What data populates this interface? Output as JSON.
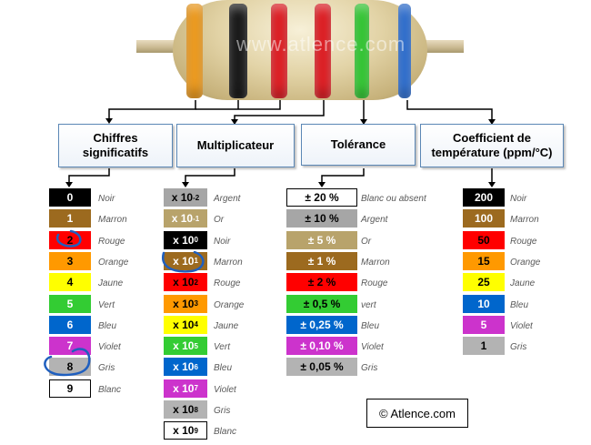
{
  "watermark": "www.atlence.com",
  "resistor_bands": [
    "#f29d1e",
    "#1a1a1a",
    "#e31e24",
    "#e31e24",
    "#33cc33",
    "#2b6fd6"
  ],
  "categories": {
    "chiffres": [
      "Chiffres",
      "significatifs"
    ],
    "multiplicateur": [
      "Multiplicateur"
    ],
    "tolerance": [
      "Tolérance"
    ],
    "coefficient": [
      "Coefficient de",
      "température (ppm/°C)"
    ]
  },
  "chiffres": [
    {
      "value": "0",
      "label": "Noir",
      "color": "#000000",
      "text": "#ffffff"
    },
    {
      "value": "1",
      "label": "Marron",
      "color": "#9c6a1f",
      "text": "#ffffff"
    },
    {
      "value": "2",
      "label": "Rouge",
      "color": "#ff0000",
      "text": "#000000"
    },
    {
      "value": "3",
      "label": "Orange",
      "color": "#ff9900",
      "text": "#000000"
    },
    {
      "value": "4",
      "label": "Jaune",
      "color": "#ffff00",
      "text": "#000000"
    },
    {
      "value": "5",
      "label": "Vert",
      "color": "#33cc33",
      "text": "#ffffff"
    },
    {
      "value": "6",
      "label": "Bleu",
      "color": "#0066cc",
      "text": "#ffffff"
    },
    {
      "value": "7",
      "label": "Violet",
      "color": "#cc33cc",
      "text": "#ffffff"
    },
    {
      "value": "8",
      "label": "Gris",
      "color": "#b3b3b3",
      "text": "#000000"
    },
    {
      "value": "9",
      "label": "Blanc",
      "color": "#ffffff",
      "text": "#000000"
    }
  ],
  "multiplicateur": [
    {
      "base": "x 10",
      "exp": "-2",
      "label": "Argent",
      "color": "#a6a6a6",
      "text": "#000000"
    },
    {
      "base": "x 10",
      "exp": "-1",
      "label": "Or",
      "color": "#b8a36b",
      "text": "#ffffff"
    },
    {
      "base": "x 10",
      "exp": "0",
      "label": "Noir",
      "color": "#000000",
      "text": "#ffffff"
    },
    {
      "base": "x 10",
      "exp": "1",
      "label": "Marron",
      "color": "#9c6a1f",
      "text": "#ffffff"
    },
    {
      "base": "x 10",
      "exp": "2",
      "label": "Rouge",
      "color": "#ff0000",
      "text": "#000000"
    },
    {
      "base": "x 10",
      "exp": "3",
      "label": "Orange",
      "color": "#ff9900",
      "text": "#000000"
    },
    {
      "base": "x 10",
      "exp": "4",
      "label": "Jaune",
      "color": "#ffff00",
      "text": "#000000"
    },
    {
      "base": "x 10",
      "exp": "5",
      "label": "Vert",
      "color": "#33cc33",
      "text": "#ffffff"
    },
    {
      "base": "x 10",
      "exp": "6",
      "label": "Bleu",
      "color": "#0066cc",
      "text": "#ffffff"
    },
    {
      "base": "x 10",
      "exp": "7",
      "label": "Violet",
      "color": "#cc33cc",
      "text": "#ffffff"
    },
    {
      "base": "x 10",
      "exp": "8",
      "label": "Gris",
      "color": "#b3b3b3",
      "text": "#000000"
    },
    {
      "base": "x 10",
      "exp": "9",
      "label": "Blanc",
      "color": "#ffffff",
      "text": "#000000"
    }
  ],
  "tolerance": [
    {
      "value": "± 20 %",
      "label": "Blanc ou absent",
      "color": "#ffffff",
      "text": "#000000"
    },
    {
      "value": "± 10 %",
      "label": "Argent",
      "color": "#a6a6a6",
      "text": "#000000"
    },
    {
      "value": "± 5 %",
      "label": "Or",
      "color": "#b8a36b",
      "text": "#ffffff"
    },
    {
      "value": "± 1 %",
      "label": "Marron",
      "color": "#9c6a1f",
      "text": "#ffffff"
    },
    {
      "value": "± 2 %",
      "label": "Rouge",
      "color": "#ff0000",
      "text": "#000000"
    },
    {
      "value": "± 0,5 %",
      "label": "vert",
      "color": "#33cc33",
      "text": "#000000"
    },
    {
      "value": "± 0,25 %",
      "label": "Bleu",
      "color": "#0066cc",
      "text": "#ffffff"
    },
    {
      "value": "± 0,10 %",
      "label": "Violet",
      "color": "#cc33cc",
      "text": "#ffffff"
    },
    {
      "value": "± 0,05 %",
      "label": "Gris",
      "color": "#b3b3b3",
      "text": "#000000"
    }
  ],
  "coefficient": [
    {
      "value": "200",
      "label": "Noir",
      "color": "#000000",
      "text": "#ffffff"
    },
    {
      "value": "100",
      "label": "Marron",
      "color": "#9c6a1f",
      "text": "#ffffff"
    },
    {
      "value": "50",
      "label": "Rouge",
      "color": "#ff0000",
      "text": "#000000"
    },
    {
      "value": "15",
      "label": "Orange",
      "color": "#ff9900",
      "text": "#000000"
    },
    {
      "value": "25",
      "label": "Jaune",
      "color": "#ffff00",
      "text": "#000000"
    },
    {
      "value": "10",
      "label": "Bleu",
      "color": "#0066cc",
      "text": "#ffffff"
    },
    {
      "value": "5",
      "label": "Violet",
      "color": "#cc33cc",
      "text": "#ffffff"
    },
    {
      "value": "1",
      "label": "Gris",
      "color": "#b3b3b3",
      "text": "#000000"
    }
  ],
  "copyright": "© Atlence.com"
}
